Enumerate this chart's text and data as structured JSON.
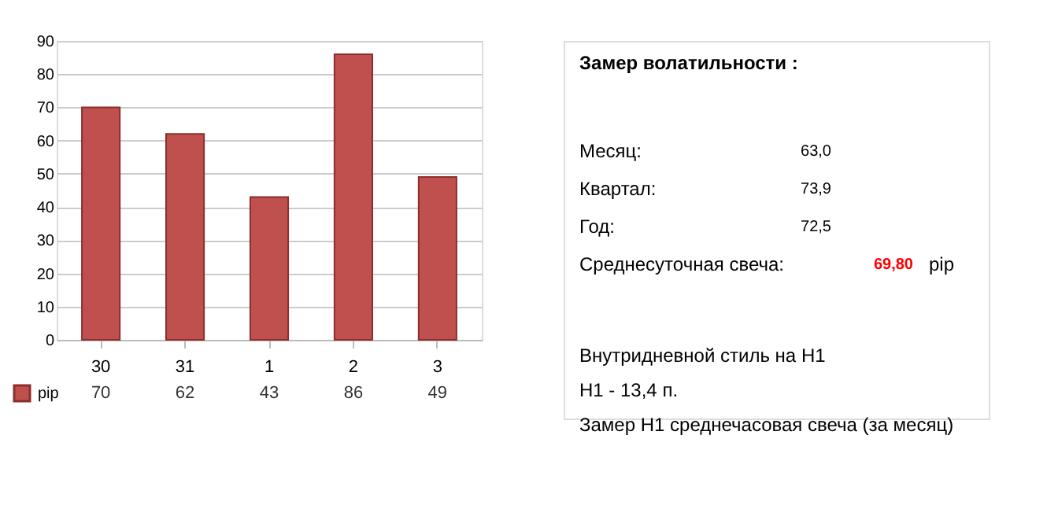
{
  "chart_data": {
    "type": "bar",
    "categories": [
      "30",
      "31",
      "1",
      "2",
      "3"
    ],
    "series": [
      {
        "name": "pip",
        "color": "#c0504d",
        "values": [
          70,
          62,
          43,
          86,
          49
        ]
      }
    ],
    "ylim": [
      0,
      90
    ],
    "yticks": [
      0,
      10,
      20,
      30,
      40,
      50,
      60,
      70,
      80,
      90
    ],
    "grid": "y",
    "legend": "bottom left",
    "data_labels": true,
    "annotations": [
      "Замер  волатильности :",
      "Месяц:",
      "63,0",
      "Квартал:",
      "73,9",
      "Год:",
      "72,5",
      "Среднесуточная свеча:",
      "69,80",
      "pip",
      "Внутридневной стиль на H1",
      "H1 - 13,4 п.",
      "Замер H1 среднечасовая свеча (за месяц)"
    ]
  }
}
